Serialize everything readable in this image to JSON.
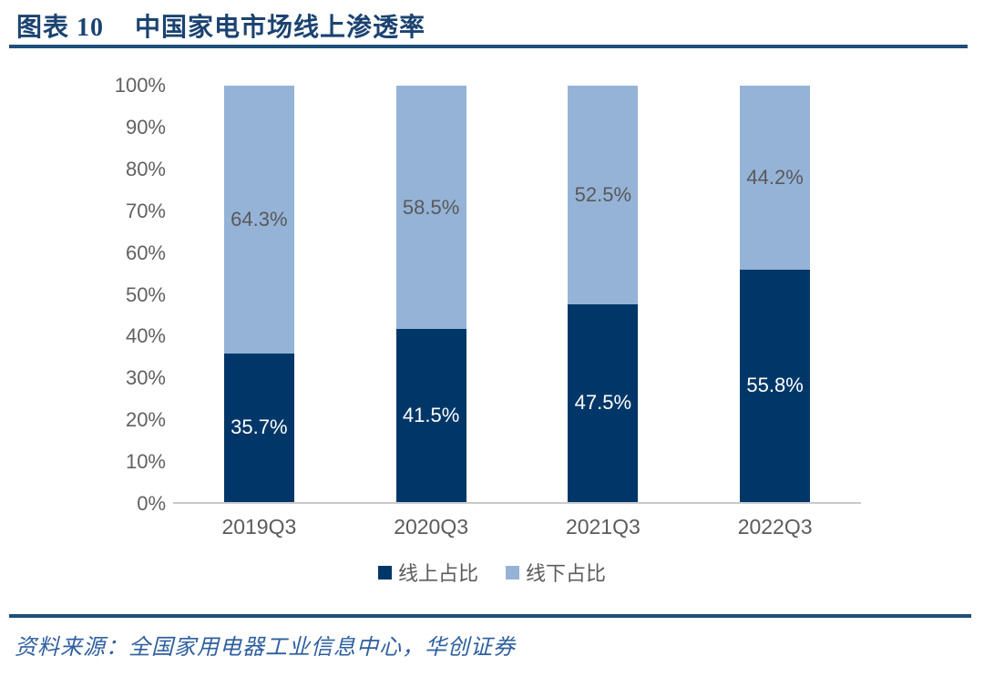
{
  "header": {
    "figure_label": "图表 10",
    "title": "中国家电市场线上渗透率"
  },
  "footer": {
    "source": "资料来源：全国家用电器工业信息中心，华创证券"
  },
  "colors": {
    "online_bar": "#003768",
    "offline_bar": "#95B3D7",
    "title_navy": "#1B4371",
    "rule_navy": "#1F4E79",
    "axis_text_gray": "#5B5B5B",
    "source_blue": "#2E5F9F",
    "baseline_gray": "#C9C9C9"
  },
  "chart_data": {
    "type": "bar",
    "stacked": true,
    "title": "中国家电市场线上渗透率",
    "categories": [
      "2019Q3",
      "2020Q3",
      "2021Q3",
      "2022Q3"
    ],
    "series": [
      {
        "name": "线上占比",
        "color": "#003768",
        "label_color": "#FFFFFF",
        "values": [
          35.7,
          41.5,
          47.5,
          55.8
        ]
      },
      {
        "name": "线下占比",
        "color": "#95B3D7",
        "label_color": "#595959",
        "values": [
          64.3,
          58.5,
          52.5,
          44.2
        ]
      }
    ],
    "value_suffix": "%",
    "data_labels": true,
    "y_axis": {
      "min": 0,
      "max": 100,
      "tick_step": 10,
      "tick_labels": [
        "0%",
        "10%",
        "20%",
        "30%",
        "40%",
        "50%",
        "60%",
        "70%",
        "80%",
        "90%",
        "100%"
      ]
    },
    "grid": false,
    "legend_position": "bottom"
  }
}
